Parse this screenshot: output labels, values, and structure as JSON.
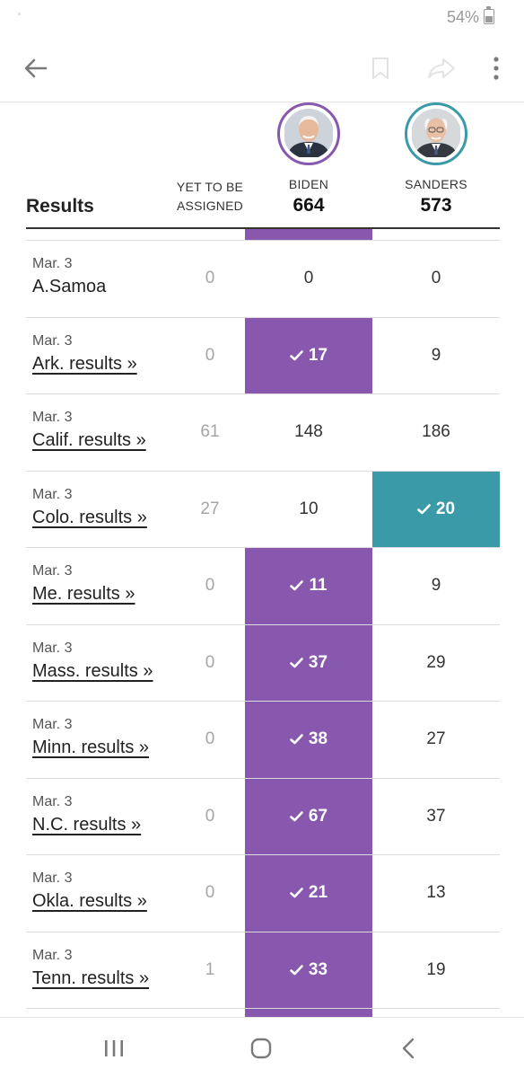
{
  "status_bar": {
    "battery": "54%"
  },
  "header": {
    "title": "Results",
    "yet_label": "YET TO BE ASSIGNED",
    "candidates": [
      {
        "name": "BIDEN",
        "total": "664",
        "color": "#8758ad"
      },
      {
        "name": "SANDERS",
        "total": "573",
        "color": "#3a9aa8"
      }
    ]
  },
  "rows": [
    {
      "date": "Mar. 3",
      "state": "A.Samoa",
      "link": false,
      "yet": "0",
      "biden": "0",
      "sanders": "0",
      "winner": ""
    },
    {
      "date": "Mar. 3",
      "state": "Ark. results »",
      "link": true,
      "yet": "0",
      "biden": "17",
      "sanders": "9",
      "winner": "biden"
    },
    {
      "date": "Mar. 3",
      "state": "Calif. results »",
      "link": true,
      "yet": "61",
      "biden": "148",
      "sanders": "186",
      "winner": ""
    },
    {
      "date": "Mar. 3",
      "state": "Colo. results »",
      "link": true,
      "yet": "27",
      "biden": "10",
      "sanders": "20",
      "winner": "sanders"
    },
    {
      "date": "Mar. 3",
      "state": "Me. results »",
      "link": true,
      "yet": "0",
      "biden": "11",
      "sanders": "9",
      "winner": "biden"
    },
    {
      "date": "Mar. 3",
      "state": "Mass. results »",
      "link": true,
      "yet": "0",
      "biden": "37",
      "sanders": "29",
      "winner": "biden"
    },
    {
      "date": "Mar. 3",
      "state": "Minn. results »",
      "link": true,
      "yet": "0",
      "biden": "38",
      "sanders": "27",
      "winner": "biden"
    },
    {
      "date": "Mar. 3",
      "state": "N.C. results »",
      "link": true,
      "yet": "0",
      "biden": "67",
      "sanders": "37",
      "winner": "biden"
    },
    {
      "date": "Mar. 3",
      "state": "Okla. results »",
      "link": true,
      "yet": "0",
      "biden": "21",
      "sanders": "13",
      "winner": "biden"
    },
    {
      "date": "Mar. 3",
      "state": "Tenn. results »",
      "link": true,
      "yet": "1",
      "biden": "33",
      "sanders": "19",
      "winner": "biden"
    },
    {
      "date": "",
      "state": "",
      "link": false,
      "yet": "",
      "biden": "",
      "sanders": "",
      "winner": "biden"
    }
  ],
  "icons": {
    "back": "arrow-left-icon",
    "bookmark": "bookmark-icon",
    "share": "share-icon",
    "more": "more-vertical-icon",
    "check": "check-icon"
  }
}
